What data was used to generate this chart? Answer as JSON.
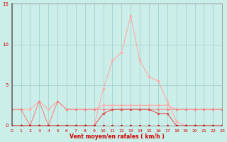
{
  "x": [
    0,
    1,
    2,
    3,
    4,
    5,
    6,
    7,
    8,
    9,
    10,
    11,
    12,
    13,
    14,
    15,
    16,
    17,
    18,
    19,
    20,
    21,
    22,
    23
  ],
  "line_rafales": [
    0,
    0,
    0,
    0,
    0,
    0,
    0,
    0,
    0,
    0,
    4.5,
    8,
    9,
    13.5,
    8,
    6,
    5.5,
    3,
    0.5,
    0,
    0,
    0,
    0,
    0
  ],
  "line_flat": [
    2,
    2,
    2,
    3,
    2,
    3,
    2,
    2,
    2,
    2,
    2.5,
    2.5,
    2.5,
    2.5,
    2.5,
    2.5,
    2.5,
    2.5,
    2,
    2,
    2,
    2,
    2,
    2
  ],
  "line_zigzag": [
    2,
    2,
    0,
    3,
    0,
    3,
    2,
    2,
    2,
    2,
    2,
    2,
    2,
    2,
    2,
    2,
    2,
    2,
    2,
    2,
    2,
    2,
    2,
    2
  ],
  "line_dark": [
    0,
    0,
    0,
    0,
    0,
    0,
    0,
    0,
    0,
    0,
    1.5,
    2,
    2,
    2,
    2,
    2,
    1.5,
    1.5,
    0,
    0,
    0,
    0,
    0,
    0
  ],
  "line_bottom": [
    0,
    0,
    0,
    0,
    0,
    0,
    0,
    0,
    0,
    0,
    0,
    0,
    0,
    0,
    0,
    0,
    0,
    0,
    0,
    0,
    0,
    0,
    0,
    0
  ],
  "color_darkred": "#cc0000",
  "color_medred": "#dd5555",
  "color_pink": "#ee8888",
  "color_lightpink": "#ffaaaa",
  "bg_color": "#cceee8",
  "grid_color": "#99cccc",
  "xlabel": "Vent moyen/en rafales ( km/h )",
  "xlim": [
    0,
    23
  ],
  "ylim": [
    0,
    15
  ],
  "yticks": [
    0,
    5,
    10,
    15
  ],
  "xticks": [
    0,
    1,
    2,
    3,
    4,
    5,
    6,
    7,
    8,
    9,
    10,
    11,
    12,
    13,
    14,
    15,
    16,
    17,
    18,
    19,
    20,
    21,
    22,
    23
  ],
  "figsize": [
    3.2,
    2.0
  ],
  "dpi": 100
}
